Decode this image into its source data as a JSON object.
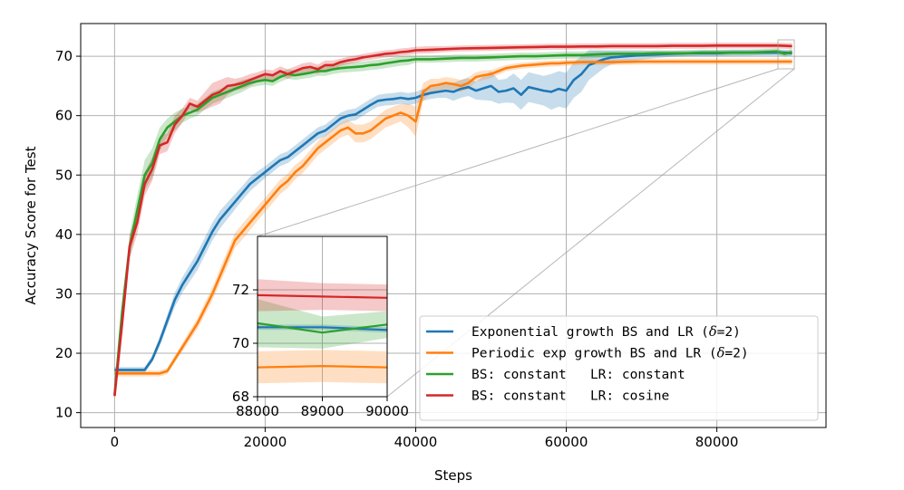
{
  "chart_data": {
    "type": "line",
    "title": "",
    "xlabel": "Steps",
    "ylabel": "Accuracy Score for Test",
    "xlim": [
      -4500,
      94500
    ],
    "ylim": [
      7.5,
      75.5
    ],
    "xticks": [
      0,
      20000,
      40000,
      60000,
      80000
    ],
    "yticks": [
      10,
      20,
      30,
      40,
      50,
      60,
      70
    ],
    "grid": true,
    "legend_position": "lower-right",
    "series": [
      {
        "name": "Exponential growth BS and LR (δ=2)",
        "label_prefix": "Exponential growth BS and LR (",
        "label_delta": "δ",
        "label_suffix": "=2)",
        "color": "#1f77b4",
        "x": [
          0,
          1000,
          2000,
          3000,
          4000,
          5000,
          6000,
          7000,
          8000,
          9000,
          10000,
          11000,
          12000,
          13000,
          14000,
          15000,
          16000,
          17000,
          18000,
          19000,
          20000,
          21000,
          22000,
          23000,
          24000,
          25000,
          26000,
          27000,
          28000,
          29000,
          30000,
          31000,
          32000,
          33000,
          34000,
          35000,
          36000,
          37000,
          38000,
          39000,
          40000,
          41000,
          42000,
          43000,
          44000,
          45000,
          46000,
          47000,
          48000,
          49000,
          50000,
          51000,
          52000,
          53000,
          54000,
          55000,
          56000,
          57000,
          58000,
          59000,
          60000,
          61000,
          62000,
          63000,
          64000,
          65000,
          66000,
          68000,
          70000,
          72000,
          74000,
          76000,
          78000,
          80000,
          82000,
          84000,
          86000,
          88000,
          89000,
          90000
        ],
        "y": [
          17.2,
          17.2,
          17.2,
          17.2,
          17.2,
          19.0,
          22.0,
          25.5,
          29.0,
          31.5,
          33.5,
          35.5,
          38.0,
          40.5,
          42.5,
          44.0,
          45.5,
          47.0,
          48.5,
          49.5,
          50.5,
          51.5,
          52.5,
          53.0,
          54.0,
          55.0,
          56.0,
          57.0,
          57.5,
          58.5,
          59.5,
          60.0,
          60.2,
          61.0,
          61.8,
          62.5,
          62.7,
          62.8,
          63.0,
          62.8,
          63.0,
          63.5,
          63.8,
          64.0,
          64.2,
          64.0,
          64.5,
          64.8,
          64.2,
          64.6,
          65.0,
          64.0,
          64.2,
          64.6,
          63.5,
          64.8,
          64.5,
          64.2,
          64.0,
          64.5,
          64.2,
          66.0,
          67.0,
          68.5,
          69.0,
          69.5,
          69.8,
          70.0,
          70.2,
          70.3,
          70.4,
          70.5,
          70.5,
          70.5,
          70.6,
          70.6,
          70.6,
          70.6,
          70.6,
          70.5
        ],
        "band": [
          0.5,
          0.5,
          0.5,
          0.5,
          0.5,
          0.6,
          0.8,
          1.0,
          1.2,
          1.3,
          1.4,
          1.5,
          1.5,
          1.5,
          1.5,
          1.4,
          1.3,
          1.2,
          1.2,
          1.1,
          1.0,
          1.0,
          1.0,
          1.0,
          1.0,
          1.0,
          1.0,
          1.0,
          1.0,
          1.0,
          1.0,
          1.0,
          1.0,
          1.0,
          1.0,
          1.0,
          1.0,
          1.0,
          1.0,
          1.0,
          1.0,
          1.0,
          1.0,
          1.0,
          1.2,
          1.5,
          1.5,
          1.5,
          1.5,
          2.0,
          2.5,
          2.0,
          2.0,
          2.5,
          2.5,
          2.5,
          2.5,
          2.5,
          3.0,
          3.0,
          3.0,
          3.0,
          3.0,
          2.5,
          2.0,
          1.5,
          1.2,
          1.0,
          0.8,
          0.6,
          0.5,
          0.5,
          0.5,
          0.5,
          0.5,
          0.5,
          0.5,
          0.5,
          0.5,
          0.5
        ]
      },
      {
        "name": "Periodic exp growth BS and LR (δ=2)",
        "label_prefix": "Periodic exp growth BS and LR (",
        "label_delta": "δ",
        "label_suffix": "=2)",
        "color": "#ff7f0e",
        "x": [
          0,
          1000,
          2000,
          3000,
          4000,
          5000,
          6000,
          7000,
          8000,
          9000,
          10000,
          11000,
          12000,
          13000,
          14000,
          15000,
          16000,
          17000,
          18000,
          19000,
          20000,
          21000,
          22000,
          23000,
          24000,
          25000,
          26000,
          27000,
          28000,
          29000,
          30000,
          31000,
          32000,
          33000,
          34000,
          35000,
          36000,
          37000,
          38000,
          39000,
          40000,
          41000,
          42000,
          43000,
          44000,
          45000,
          46000,
          47000,
          48000,
          49000,
          50000,
          51000,
          52000,
          53000,
          54000,
          55000,
          56000,
          57000,
          58000,
          59000,
          60000,
          62000,
          64000,
          66000,
          68000,
          70000,
          72000,
          74000,
          76000,
          78000,
          80000,
          82000,
          84000,
          86000,
          88000,
          89000,
          90000
        ],
        "y": [
          16.6,
          16.6,
          16.6,
          16.6,
          16.6,
          16.6,
          16.6,
          17.0,
          19.0,
          21.0,
          23.0,
          25.0,
          27.5,
          30.0,
          33.0,
          36.0,
          39.0,
          40.5,
          42.0,
          43.5,
          45.0,
          46.5,
          48.0,
          49.0,
          50.5,
          51.5,
          53.0,
          54.5,
          55.5,
          56.5,
          57.5,
          58.0,
          57.0,
          57.0,
          57.5,
          58.5,
          59.5,
          60.0,
          60.5,
          60.0,
          59.0,
          64.0,
          65.0,
          65.2,
          65.5,
          65.3,
          65.0,
          65.5,
          66.5,
          66.8,
          67.0,
          67.5,
          68.0,
          68.2,
          68.4,
          68.5,
          68.6,
          68.7,
          68.8,
          68.8,
          68.9,
          69.0,
          69.0,
          69.0,
          69.05,
          69.1,
          69.1,
          69.1,
          69.1,
          69.1,
          69.1,
          69.1,
          69.1,
          69.1,
          69.1,
          69.1,
          69.1
        ],
        "band": [
          0.5,
          0.5,
          0.5,
          0.5,
          0.5,
          0.5,
          0.5,
          0.5,
          0.6,
          0.7,
          0.8,
          0.9,
          1.0,
          1.1,
          1.2,
          1.3,
          1.3,
          1.3,
          1.3,
          1.2,
          1.2,
          1.2,
          1.2,
          1.2,
          1.2,
          1.2,
          1.2,
          1.2,
          1.2,
          1.2,
          1.2,
          1.2,
          1.5,
          1.5,
          1.5,
          1.5,
          1.5,
          1.5,
          1.5,
          2.0,
          2.5,
          1.5,
          1.2,
          1.0,
          1.0,
          1.0,
          1.0,
          1.0,
          0.8,
          0.8,
          0.7,
          0.6,
          0.5,
          0.5,
          0.5,
          0.5,
          0.5,
          0.5,
          0.5,
          0.5,
          0.5,
          0.5,
          0.5,
          0.5,
          0.5,
          0.5,
          0.5,
          0.5,
          0.5,
          0.5,
          0.5,
          0.5,
          0.5,
          0.5,
          0.5,
          0.5,
          0.5
        ]
      },
      {
        "name": "BS: constant   LR: constant",
        "color": "#2ca02c",
        "x": [
          0,
          1000,
          2000,
          3000,
          4000,
          5000,
          6000,
          7000,
          8000,
          9000,
          10000,
          11000,
          12000,
          13000,
          14000,
          15000,
          16000,
          17000,
          18000,
          19000,
          20000,
          21000,
          22000,
          23000,
          24000,
          25000,
          26000,
          27000,
          28000,
          29000,
          30000,
          31000,
          32000,
          33000,
          34000,
          35000,
          36000,
          37000,
          38000,
          39000,
          40000,
          42000,
          44000,
          46000,
          48000,
          50000,
          52000,
          54000,
          56000,
          58000,
          60000,
          62000,
          64000,
          66000,
          68000,
          70000,
          72000,
          74000,
          76000,
          78000,
          80000,
          82000,
          84000,
          86000,
          88000,
          89000,
          90000
        ],
        "y": [
          13.0,
          27.0,
          38.0,
          44.0,
          50.0,
          52.0,
          56.0,
          58.0,
          59.0,
          60.0,
          60.5,
          61.0,
          62.0,
          63.0,
          63.5,
          64.0,
          64.5,
          65.0,
          65.5,
          65.8,
          66.0,
          65.8,
          66.5,
          67.0,
          66.8,
          67.0,
          67.2,
          67.5,
          67.5,
          67.8,
          68.0,
          68.1,
          68.2,
          68.3,
          68.5,
          68.6,
          68.8,
          69.0,
          69.2,
          69.3,
          69.5,
          69.5,
          69.6,
          69.7,
          69.7,
          69.8,
          69.9,
          70.0,
          70.0,
          70.1,
          70.2,
          70.2,
          70.3,
          70.4,
          70.4,
          70.4,
          70.5,
          70.5,
          70.5,
          70.6,
          70.6,
          70.6,
          70.6,
          70.7,
          70.8,
          70.4,
          70.7
        ],
        "band": [
          0.5,
          1.5,
          2.0,
          2.5,
          2.5,
          2.5,
          2.0,
          1.5,
          1.5,
          1.2,
          1.0,
          1.0,
          1.0,
          1.0,
          1.0,
          1.0,
          1.0,
          1.0,
          0.8,
          0.8,
          0.8,
          0.8,
          0.8,
          0.8,
          0.8,
          0.8,
          0.8,
          0.8,
          0.8,
          0.8,
          0.8,
          0.8,
          0.8,
          0.8,
          0.8,
          0.8,
          0.8,
          0.8,
          0.8,
          0.8,
          0.6,
          0.6,
          0.6,
          0.6,
          0.6,
          0.6,
          0.6,
          0.6,
          0.6,
          0.6,
          0.6,
          0.6,
          0.6,
          0.5,
          0.5,
          0.5,
          0.5,
          0.5,
          0.5,
          0.5,
          0.5,
          0.5,
          0.5,
          0.5,
          0.5,
          0.5,
          0.5
        ]
      },
      {
        "name": "BS: constant   LR: cosine",
        "color": "#d62728",
        "x": [
          0,
          1000,
          2000,
          3000,
          4000,
          5000,
          6000,
          7000,
          8000,
          9000,
          10000,
          11000,
          12000,
          13000,
          14000,
          15000,
          16000,
          17000,
          18000,
          19000,
          20000,
          21000,
          22000,
          23000,
          24000,
          25000,
          26000,
          27000,
          28000,
          29000,
          30000,
          31000,
          32000,
          33000,
          34000,
          35000,
          36000,
          37000,
          38000,
          39000,
          40000,
          42000,
          44000,
          46000,
          48000,
          50000,
          52000,
          54000,
          56000,
          58000,
          60000,
          62000,
          64000,
          66000,
          68000,
          70000,
          72000,
          74000,
          76000,
          78000,
          80000,
          82000,
          84000,
          86000,
          88000,
          89000,
          90000
        ],
        "y": [
          12.8,
          25.0,
          38.0,
          42.0,
          48.5,
          51.0,
          55.0,
          55.5,
          58.5,
          60.0,
          62.0,
          61.5,
          62.5,
          63.5,
          64.0,
          65.0,
          65.2,
          65.5,
          66.0,
          66.5,
          67.0,
          66.8,
          67.5,
          67.0,
          67.5,
          68.0,
          68.2,
          67.8,
          68.5,
          68.5,
          69.0,
          69.3,
          69.5,
          69.8,
          70.0,
          70.2,
          70.4,
          70.5,
          70.7,
          70.8,
          71.0,
          71.1,
          71.2,
          71.3,
          71.35,
          71.4,
          71.45,
          71.5,
          71.55,
          71.6,
          71.6,
          71.65,
          71.65,
          71.7,
          71.7,
          71.7,
          71.7,
          71.75,
          71.75,
          71.75,
          71.8,
          71.8,
          71.8,
          71.8,
          71.8,
          71.75,
          71.7
        ],
        "band": [
          0.5,
          1.5,
          2.0,
          2.0,
          2.0,
          2.0,
          1.5,
          1.5,
          1.5,
          1.2,
          1.0,
          1.0,
          1.5,
          2.0,
          2.0,
          1.5,
          1.0,
          1.0,
          1.0,
          0.8,
          0.8,
          0.8,
          0.8,
          0.8,
          0.8,
          0.8,
          0.8,
          0.8,
          0.8,
          0.8,
          0.6,
          0.6,
          0.6,
          0.6,
          0.6,
          0.6,
          0.6,
          0.6,
          0.6,
          0.6,
          0.6,
          0.6,
          0.5,
          0.5,
          0.5,
          0.5,
          0.5,
          0.5,
          0.5,
          0.5,
          0.5,
          0.5,
          0.5,
          0.5,
          0.5,
          0.5,
          0.5,
          0.5,
          0.5,
          0.5,
          0.5,
          0.5,
          0.5,
          0.5,
          0.5,
          0.5,
          0.5
        ]
      }
    ],
    "inset": {
      "xlim": [
        88000,
        90000
      ],
      "ylim": [
        68,
        74
      ],
      "xticks": [
        88000,
        89000,
        90000
      ],
      "yticks": [
        68,
        70,
        72
      ],
      "series_values": [
        {
          "name": "Exponential growth BS and LR (δ=2)",
          "x": [
            88000,
            89000,
            90000
          ],
          "y": [
            70.6,
            70.6,
            70.5
          ],
          "band": [
            0.1,
            0.1,
            0.1
          ]
        },
        {
          "name": "Periodic exp growth BS and LR (δ=2)",
          "x": [
            88000,
            89000,
            90000
          ],
          "y": [
            69.1,
            69.15,
            69.1
          ],
          "band": [
            0.6,
            0.6,
            0.6
          ]
        },
        {
          "name": "BS: constant   LR: constant",
          "x": [
            88000,
            89000,
            90000
          ],
          "y": [
            70.75,
            70.4,
            70.7
          ],
          "band": [
            0.9,
            0.6,
            0.5
          ]
        },
        {
          "name": "BS: constant   LR: cosine",
          "x": [
            88000,
            89000,
            90000
          ],
          "y": [
            71.8,
            71.75,
            71.7
          ],
          "band": [
            0.6,
            0.5,
            0.5
          ]
        }
      ]
    }
  }
}
